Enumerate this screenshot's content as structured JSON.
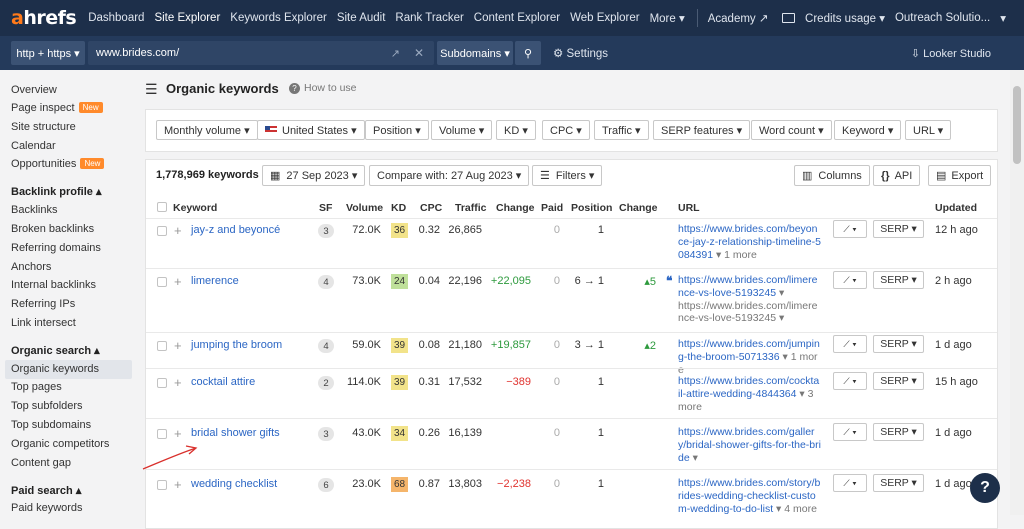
{
  "nav": {
    "logo_a": "a",
    "logo_rest": "hrefs",
    "items": [
      "Dashboard",
      "Site Explorer",
      "Keywords Explorer",
      "Site Audit",
      "Rank Tracker",
      "Content Explorer",
      "Web Explorer",
      "More ▾"
    ],
    "academy": "Academy ↗",
    "credits": "Credits usage ▾",
    "account": "Outreach Solutio...",
    "account_caret": "▾"
  },
  "search": {
    "protocol": "http + https ▾",
    "url": "www.brides.com/",
    "mode": "Subdomains ▾",
    "settings": "⚙ Settings",
    "looker": "⇩ Looker Studio"
  },
  "sidebar": {
    "items1": [
      "Overview",
      "Page inspect",
      "Site structure",
      "Calendar",
      "Opportunities"
    ],
    "new_badge": "New",
    "backlink_head": "Backlink profile ▴",
    "backlink_items": [
      "Backlinks",
      "Broken backlinks",
      "Referring domains",
      "Anchors",
      "Internal backlinks",
      "Referring IPs",
      "Link intersect"
    ],
    "organic_head": "Organic search ▴",
    "organic_items": [
      "Organic keywords",
      "Top pages",
      "Top subfolders",
      "Top subdomains",
      "Organic competitors",
      "Content gap"
    ],
    "paid_head": "Paid search ▴",
    "paid_items": [
      "Paid keywords"
    ]
  },
  "page": {
    "title": "Organic keywords",
    "how_to": "How to use"
  },
  "filters": [
    "Monthly volume ▾",
    "United States ▾",
    "Position ▾",
    "Volume ▾",
    "KD ▾",
    "CPC ▾",
    "Traffic ▾",
    "SERP features ▾",
    "Word count ▾",
    "Keyword ▾",
    "URL ▾"
  ],
  "toolbar": {
    "count": "1,778,969 keywords",
    "date": "27 Sep 2023 ▾",
    "compare": "Compare with: 27 Aug 2023 ▾",
    "filters": "Filters ▾",
    "columns": "Columns",
    "api": "API",
    "export": "Export"
  },
  "headers": [
    "Keyword",
    "SF",
    "Volume",
    "KD",
    "CPC",
    "Traffic",
    "Change",
    "Paid",
    "Position",
    "Change",
    "URL",
    "Updated"
  ],
  "rows": [
    {
      "keyword": "jay-z and beyoncé",
      "sf": "3",
      "volume": "72.0K",
      "kd": "36",
      "kd_color": "#f2e38a",
      "cpc": "0.32",
      "traffic": "26,865",
      "change": "",
      "change_class": "",
      "paid": "0",
      "position": "1",
      "pos_change": "",
      "url": "https://www.brides.com/beyonce-jay-z-relationship-timeline-5084391",
      "url_more": "▾ 1 more",
      "url2": "",
      "updated": "12 h ago"
    },
    {
      "keyword": "limerence",
      "sf": "4",
      "volume": "73.0K",
      "kd": "24",
      "kd_color": "#bfe09a",
      "cpc": "0.04",
      "traffic": "22,196",
      "change": "+22,095",
      "change_class": "pos",
      "paid": "0",
      "position": "6 → 1",
      "pos_change": "▴5",
      "url": "https://www.brides.com/limerence-vs-love-5193245",
      "url_more": "▾",
      "url2": "https://www.brides.com/limerence-vs-love-5193245 ▾",
      "updated": "2 h ago"
    },
    {
      "keyword": "jumping the broom",
      "sf": "4",
      "volume": "59.0K",
      "kd": "39",
      "kd_color": "#f2e38a",
      "cpc": "0.08",
      "traffic": "21,180",
      "change": "+19,857",
      "change_class": "pos",
      "paid": "0",
      "position": "3 → 1",
      "pos_change": "▴2",
      "url": "https://www.brides.com/jumping-the-broom-5071336",
      "url_more": "▾ 1 more",
      "url2": "",
      "updated": "1 d ago"
    },
    {
      "keyword": "cocktail attire",
      "sf": "2",
      "volume": "114.0K",
      "kd": "39",
      "kd_color": "#f2e38a",
      "cpc": "0.31",
      "traffic": "17,532",
      "change": "−389",
      "change_class": "neg",
      "paid": "0",
      "position": "1",
      "pos_change": "",
      "url": "https://www.brides.com/cocktail-attire-wedding-4844364",
      "url_more": "▾ 3 more",
      "url2": "",
      "updated": "15 h ago"
    },
    {
      "keyword": "bridal shower gifts",
      "sf": "3",
      "volume": "43.0K",
      "kd": "34",
      "kd_color": "#f2e38a",
      "cpc": "0.26",
      "traffic": "16,139",
      "change": "",
      "change_class": "",
      "paid": "0",
      "position": "1",
      "pos_change": "",
      "url": "https://www.brides.com/gallery/bridal-shower-gifts-for-the-bride",
      "url_more": "▾",
      "url2": "",
      "updated": "1 d ago"
    },
    {
      "keyword": "wedding checklist",
      "sf": "6",
      "volume": "23.0K",
      "kd": "68",
      "kd_color": "#f5b56b",
      "cpc": "0.87",
      "traffic": "13,803",
      "change": "−2,238",
      "change_class": "neg",
      "paid": "0",
      "position": "1",
      "pos_change": "",
      "url": "https://www.brides.com/story/brides-wedding-checklist-custom-wedding-to-do-list",
      "url_more": "▾ 4 more",
      "url2": "",
      "updated": "1 d ago"
    }
  ],
  "serp_label": "SERP ▾",
  "trend_label": "⟋ ▾",
  "help": "?"
}
